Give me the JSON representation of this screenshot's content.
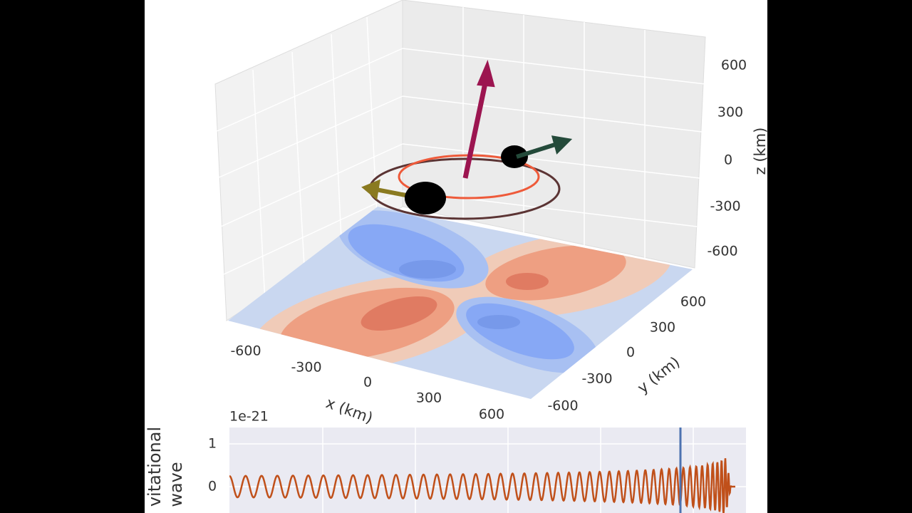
{
  "plot3d": {
    "x_label": "x (km)",
    "y_label": "y (km)",
    "z_label": "z (km)",
    "x_ticks": [
      "-600",
      "-300",
      "0",
      "300",
      "600"
    ],
    "y_ticks": [
      "-600",
      "-300",
      "0",
      "300",
      "600"
    ],
    "z_ticks": [
      "-600",
      "-300",
      "0",
      "300",
      "600"
    ]
  },
  "waveform": {
    "offset_text": "1e-21",
    "y_label_lines": [
      "vitational",
      "wave"
    ],
    "y_ticks": [
      "1",
      "0"
    ]
  }
}
